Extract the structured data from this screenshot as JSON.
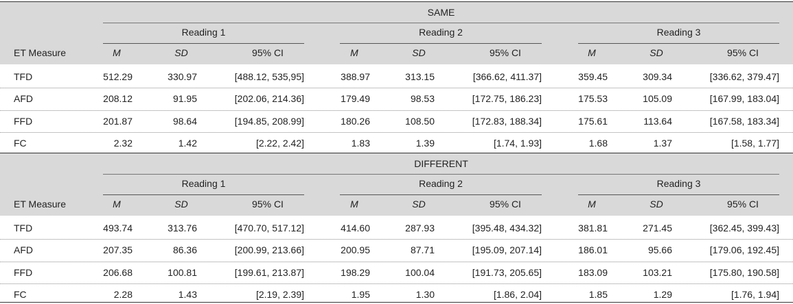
{
  "sections": [
    {
      "group": "SAME",
      "readings": [
        "Reading 1",
        "Reading 2",
        "Reading 3"
      ],
      "headers": [
        "ET Measure",
        "M",
        "SD",
        "95% CI",
        "M",
        "SD",
        "95% CI",
        "M",
        "SD",
        "95% CI"
      ],
      "rows": [
        [
          "TFD",
          "512.29",
          "330.97",
          "[488.12, 535,95]",
          "388.97",
          "313.15",
          "[366.62, 411.37]",
          "359.45",
          "309.34",
          "[336.62, 379.47]"
        ],
        [
          "AFD",
          "208.12",
          "91.95",
          "[202.06, 214.36]",
          "179.49",
          "98.53",
          "[172.75, 186.23]",
          "175.53",
          "105.09",
          "[167.99, 183.04]"
        ],
        [
          "FFD",
          "201.87",
          "98.64",
          "[194.85, 208.99]",
          "180.26",
          "108.50",
          "[172.83, 188.34]",
          "175.61",
          "113.64",
          "[167.58, 183.34]"
        ],
        [
          "FC",
          "2.32",
          "1.42",
          "[2.22, 2.42]",
          "1.83",
          "1.39",
          "[1.74, 1.93]",
          "1.68",
          "1.37",
          "[1.58, 1.77]"
        ]
      ]
    },
    {
      "group": "DIFFERENT",
      "readings": [
        "Reading 1",
        "Reading 2",
        "Reading 3"
      ],
      "headers": [
        "ET Measure",
        "M",
        "SD",
        "95% CI",
        "M",
        "SD",
        "95% CI",
        "M",
        "SD",
        "95% CI"
      ],
      "rows": [
        [
          "TFD",
          "493.74",
          "313.76",
          "[470.70, 517.12]",
          "414.60",
          "287.93",
          "[395.48, 434.32]",
          "381.81",
          "271.45",
          "[362.45, 399.43]"
        ],
        [
          "AFD",
          "207.35",
          "86.36",
          "[200.99, 213.66]",
          "200.95",
          "87.71",
          "[195.09, 207.14]",
          "186.01",
          "95.66",
          "[179.06, 192.45]"
        ],
        [
          "FFD",
          "206.68",
          "100.81",
          "[199.61, 213.87]",
          "198.29",
          "100.04",
          "[191.73, 205.65]",
          "183.09",
          "103.21",
          "[175.80, 190.58]"
        ],
        [
          "FC",
          "2.28",
          "1.43",
          "[2.19, 2.39]",
          "1.95",
          "1.30",
          "[1.86, 2.04]",
          "1.85",
          "1.29",
          "[1.76, 1.94]"
        ]
      ]
    }
  ]
}
